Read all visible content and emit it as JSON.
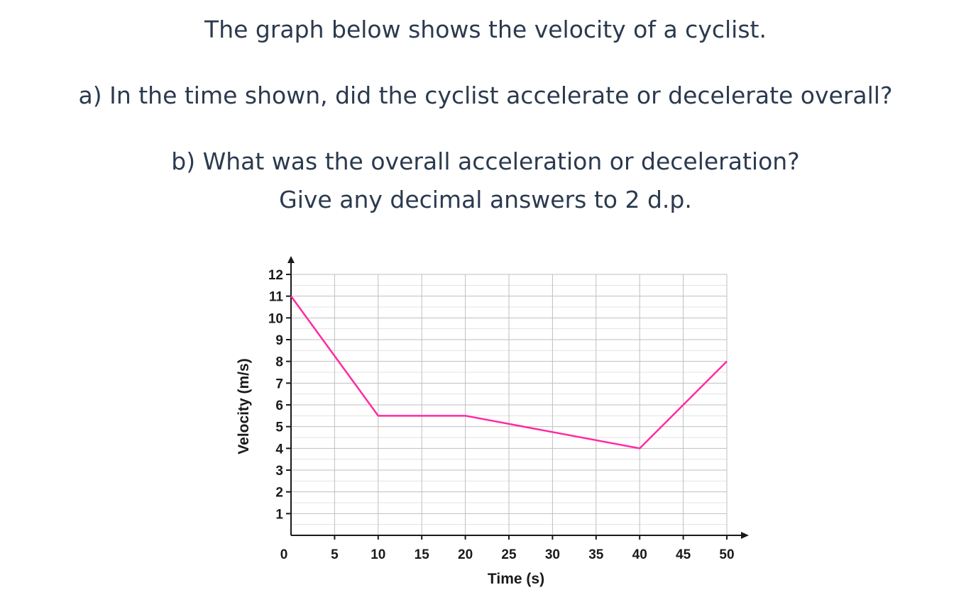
{
  "question": {
    "intro": "The graph below shows the velocity of a cyclist.",
    "part_a": "a) In the time shown, did the cyclist accelerate or decelerate overall?",
    "part_b": "b) What was the overall acceleration or deceleration?",
    "part_b_note": "Give any decimal answers to 2 d.p."
  },
  "chart_data": {
    "type": "line",
    "title": "",
    "xlabel": "Time (s)",
    "ylabel": "Velocity (m/s)",
    "xlim": [
      0,
      50
    ],
    "ylim": [
      0,
      12
    ],
    "x_ticks": [
      0,
      5,
      10,
      15,
      20,
      25,
      30,
      35,
      40,
      45,
      50
    ],
    "y_ticks": [
      1,
      2,
      3,
      4,
      5,
      6,
      7,
      8,
      9,
      10,
      11,
      12
    ],
    "grid": true,
    "series": [
      {
        "x": [
          0,
          10,
          20,
          40,
          50
        ],
        "y": [
          11,
          5.5,
          5.5,
          4,
          8
        ],
        "color": "#ff2aa3"
      }
    ],
    "colors": {
      "line": "#ff2aa3",
      "grid_major": "#bfbfbf",
      "grid_minor": "#e3e3e3",
      "axis": "#1a1a1a"
    }
  }
}
